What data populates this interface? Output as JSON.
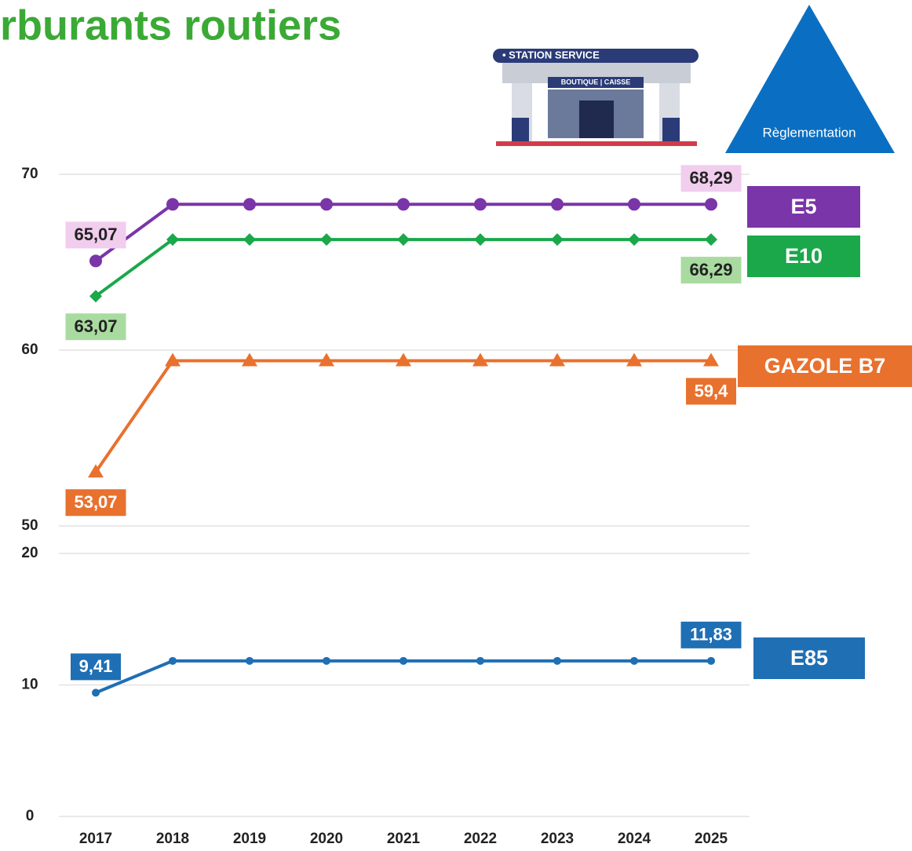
{
  "title": "rburants routiers",
  "illustration": {
    "sign": "• STATION SERVICE",
    "shop": "BOUTIQUE | CAISSE",
    "badge": "Règlementation"
  },
  "chart_data": [
    {
      "type": "line",
      "ylim": [
        50,
        70
      ],
      "yticks": [
        50,
        60,
        70
      ],
      "grid": true,
      "series": [
        {
          "name": "E5",
          "color": "#7a35a8",
          "marker": "circle",
          "label_color": "#f1cdee",
          "label_text_color": "#222",
          "label_position": "above",
          "values": [
            65.07,
            68.29,
            68.29,
            68.29,
            68.29,
            68.29,
            68.29,
            68.29,
            68.29
          ],
          "value_labels": [
            "65,07",
            null,
            null,
            null,
            null,
            null,
            null,
            null,
            "68,29"
          ]
        },
        {
          "name": "E10",
          "color": "#1aa84a",
          "marker": "diamond",
          "label_color": "#a9dba0",
          "label_text_color": "#222",
          "label_position": "below",
          "values": [
            63.07,
            66.29,
            66.29,
            66.29,
            66.29,
            66.29,
            66.29,
            66.29,
            66.29
          ],
          "value_labels": [
            "63,07",
            null,
            null,
            null,
            null,
            null,
            null,
            null,
            "66,29"
          ]
        },
        {
          "name": "GAZOLE B7",
          "color": "#e8712e",
          "marker": "triangle",
          "label_color": "#e8712e",
          "label_text_color": "#fff",
          "label_position": "below",
          "values": [
            53.07,
            59.4,
            59.4,
            59.4,
            59.4,
            59.4,
            59.4,
            59.4,
            59.4
          ],
          "value_labels": [
            "53,07",
            null,
            null,
            null,
            null,
            null,
            null,
            null,
            "59,4"
          ]
        }
      ]
    },
    {
      "type": "line",
      "ylim": [
        0,
        20
      ],
      "yticks": [
        0,
        10,
        20
      ],
      "grid": true,
      "categories": [
        "2017",
        "2018",
        "2019",
        "2020",
        "2021",
        "2022",
        "2023",
        "2024",
        "2025"
      ],
      "series": [
        {
          "name": "E85",
          "color": "#1f6fb4",
          "marker": "dot",
          "label_color": "#1f6fb4",
          "label_text_color": "#fff",
          "label_position": "above",
          "values": [
            9.41,
            11.83,
            11.83,
            11.83,
            11.83,
            11.83,
            11.83,
            11.83,
            11.83
          ],
          "value_labels": [
            "9,41",
            null,
            null,
            null,
            null,
            null,
            null,
            null,
            "11,83"
          ]
        }
      ]
    }
  ]
}
